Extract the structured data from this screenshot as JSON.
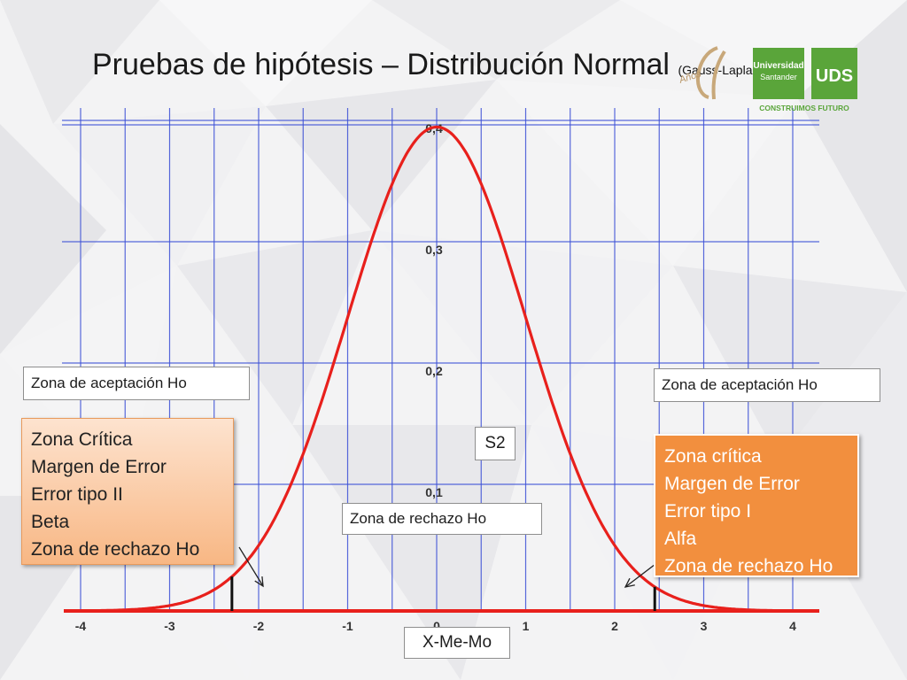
{
  "slide": {
    "title": "Pruebas de hipótesis – Distribución Normal",
    "subtitle": "(Gauss-Laplace)"
  },
  "labels": {
    "accept_left": "Zona de aceptación Ho",
    "accept_right": "Zona de aceptación Ho",
    "reject_center": "Zona de rechazo Ho",
    "s2": "S2",
    "xmemo": "X-Me-Mo"
  },
  "zone_left": {
    "lines": [
      "Zona Crítica",
      "Margen de Error",
      "Error tipo II",
      "Beta",
      "Zona de rechazo Ho"
    ]
  },
  "zone_right": {
    "lines": [
      "Zona crítica",
      "Margen de Error",
      "Error tipo I",
      "Alfa",
      "Zona de rechazo Ho"
    ]
  },
  "logo": {
    "line1": "Universidad",
    "line2": "Santander",
    "monogram": "UDS",
    "badge": "Años",
    "tagline": "CONSTRUIMOS FUTURO"
  },
  "colors": {
    "curve": "#e8201c",
    "grid": "#3b4fd6",
    "axis": "#e8201c",
    "logo_green": "#5aa53a",
    "zone_right": "#f28f3e"
  },
  "chart_data": {
    "type": "line",
    "title": "",
    "xlabel": "",
    "ylabel": "",
    "x_ticks": [
      "-4",
      "-3",
      "-2",
      "-1",
      "0",
      "1",
      "2",
      "3",
      "4"
    ],
    "y_ticks": [
      "0,1",
      "0,2",
      "0,3",
      "0,4"
    ],
    "xlim": [
      -4,
      4
    ],
    "ylim": [
      0,
      0.4
    ],
    "grid": true,
    "series": [
      {
        "function": "standard normal density",
        "mean": 0,
        "sd": 1
      }
    ],
    "critical_values": [
      -2.3,
      2.45
    ]
  }
}
